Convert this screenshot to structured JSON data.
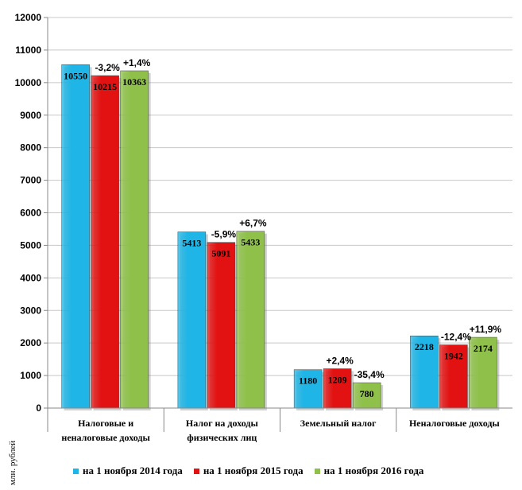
{
  "chart_data": {
    "type": "bar",
    "ylabel": "млн. рублей",
    "ylim": [
      0,
      12000
    ],
    "yticks": [
      0,
      1000,
      2000,
      3000,
      4000,
      5000,
      6000,
      7000,
      8000,
      9000,
      10000,
      11000,
      12000
    ],
    "categories": [
      [
        "Налоговые и",
        "неналоговые доходы"
      ],
      [
        "Налог на доходы",
        "физических лиц"
      ],
      [
        "Земельный налог"
      ],
      [
        "Неналоговые доходы"
      ]
    ],
    "series": [
      {
        "name": "на 1 ноября 2014 года",
        "color": "#1fb5e6",
        "values": [
          10550,
          5413,
          1180,
          2218
        ]
      },
      {
        "name": "на 1 ноября 2015 года",
        "color": "#e31212",
        "values": [
          10215,
          5091,
          1209,
          1942
        ]
      },
      {
        "name": "на 1 ноября 2016 года",
        "color": "#8fc14a",
        "values": [
          10363,
          5433,
          780,
          2174
        ]
      }
    ],
    "changes": [
      {
        "series": 1,
        "labels": [
          "-3,2%",
          "-5,9%",
          "+2,4%",
          "-12,4%"
        ]
      },
      {
        "series": 2,
        "labels": [
          "+1,4%",
          "+6,7%",
          "-35,4%",
          "+11,9%"
        ]
      }
    ],
    "grid": true,
    "legend_position": "bottom"
  }
}
